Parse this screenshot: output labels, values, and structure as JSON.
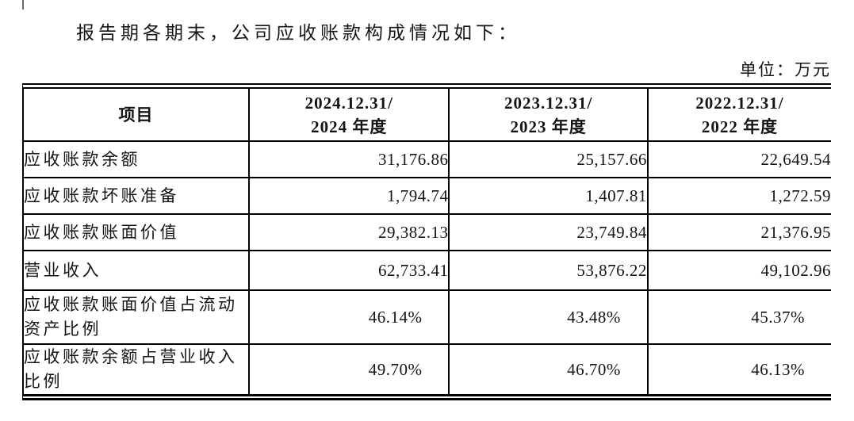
{
  "page": {
    "intro_text": "报告期各期末，公司应收账款构成情况如下：",
    "unit_label": "单位：万元"
  },
  "table": {
    "header": {
      "item": "项目",
      "col_2024_line1": "2024.12.31/",
      "col_2024_line2": "2024 年度",
      "col_2023_line1": "2023.12.31/",
      "col_2023_line2": "2023 年度",
      "col_2022_line1": "2022.12.31/",
      "col_2022_line2": "2022 年度"
    },
    "rows": [
      {
        "label": "应收账款余额",
        "values": [
          "31,176.86",
          "25,157.66",
          "22,649.54"
        ]
      },
      {
        "label": "应收账款坏账准备",
        "values": [
          "1,794.74",
          "1,407.81",
          "1,272.59"
        ]
      },
      {
        "label": "应收账款账面价值",
        "values": [
          "29,382.13",
          "23,749.84",
          "21,376.95"
        ]
      },
      {
        "label": "营业收入",
        "values": [
          "62,733.41",
          "53,876.22",
          "49,102.96"
        ]
      },
      {
        "label": "应收账款账面价值占流动资产比例",
        "values": [
          "46.14%",
          "43.48%",
          "45.37%"
        ]
      },
      {
        "label": "应收账款余额占营业收入比例",
        "values": [
          "49.70%",
          "46.70%",
          "46.13%"
        ]
      }
    ]
  },
  "colors": {
    "text": "#141414",
    "border": "#000000",
    "background": "#ffffff"
  }
}
